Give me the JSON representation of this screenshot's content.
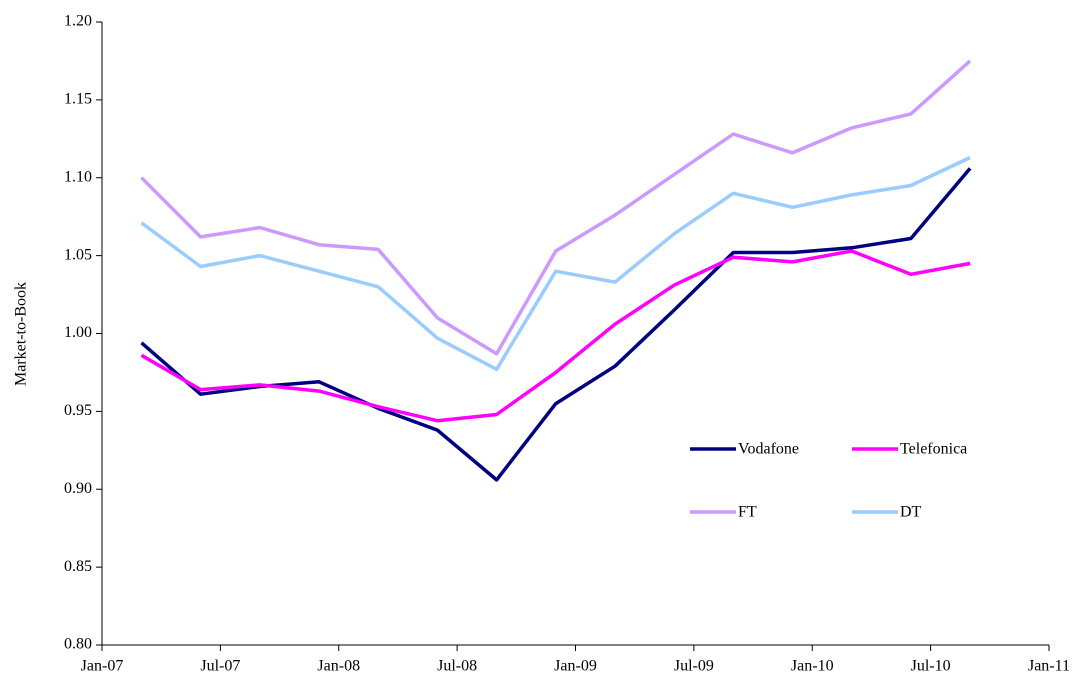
{
  "chart_data": {
    "type": "line",
    "y_label": "Market-to-Book",
    "x": [
      "2007-03",
      "2007-06",
      "2007-09",
      "2007-12",
      "2008-03",
      "2008-06",
      "2008-09",
      "2008-12",
      "2009-03",
      "2009-06",
      "2009-09",
      "2009-12",
      "2010-03",
      "2010-06",
      "2010-09"
    ],
    "xlim": [
      "2007-01",
      "2011-01"
    ],
    "xticks": [
      {
        "value": "2007-01",
        "label": "Jan-07"
      },
      {
        "value": "2007-07",
        "label": "Jul-07"
      },
      {
        "value": "2008-01",
        "label": "Jan-08"
      },
      {
        "value": "2008-07",
        "label": "Jul-08"
      },
      {
        "value": "2009-01",
        "label": "Jan-09"
      },
      {
        "value": "2009-07",
        "label": "Jul-09"
      },
      {
        "value": "2010-01",
        "label": "Jan-10"
      },
      {
        "value": "2010-07",
        "label": "Jul-10"
      },
      {
        "value": "2011-01",
        "label": "Jan-11"
      }
    ],
    "ylim": [
      0.8,
      1.2
    ],
    "yticks": [
      {
        "value": 0.8,
        "label": "0.80"
      },
      0.85,
      {
        "value": 0.9,
        "label": "0.90"
      },
      0.95,
      {
        "value": 1.0,
        "label": "1.00"
      },
      1.05,
      {
        "value": 1.1,
        "label": "1.10"
      },
      1.15,
      {
        "value": 1.2,
        "label": "1.20"
      }
    ],
    "grid": false,
    "legend": "lower right",
    "series": [
      {
        "name": "Vodafone",
        "color": "#000080",
        "values": [
          0.994,
          0.961,
          0.966,
          0.969,
          0.952,
          0.938,
          0.906,
          0.955,
          0.979,
          1.015,
          1.052,
          1.052,
          1.055,
          1.061,
          1.106
        ]
      },
      {
        "name": "Telefonica",
        "color": "#ff00ff",
        "values": [
          0.986,
          0.964,
          0.967,
          0.963,
          0.953,
          0.944,
          0.948,
          0.975,
          1.006,
          1.031,
          1.049,
          1.046,
          1.053,
          1.038,
          1.045
        ]
      },
      {
        "name": "FT",
        "color": "#cc99ff",
        "values": [
          1.1,
          1.062,
          1.068,
          1.057,
          1.054,
          1.01,
          0.987,
          1.053,
          1.076,
          1.102,
          1.128,
          1.116,
          1.132,
          1.141,
          1.175
        ]
      },
      {
        "name": "DT",
        "color": "#99ccff",
        "values": [
          1.071,
          1.043,
          1.05,
          1.04,
          1.03,
          0.997,
          0.977,
          1.04,
          1.033,
          1.064,
          1.09,
          1.081,
          1.089,
          1.095,
          1.113
        ]
      }
    ]
  }
}
